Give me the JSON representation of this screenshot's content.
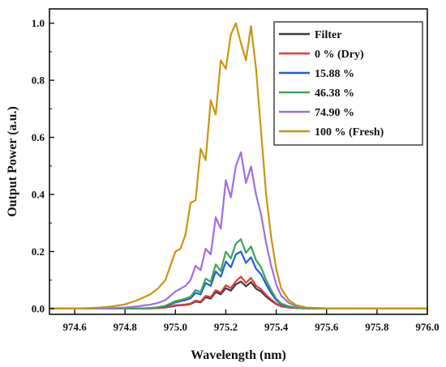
{
  "chart_data": {
    "type": "line",
    "title": "",
    "xlabel": "Wavelength (nm)",
    "ylabel": "Output Power (a.u.)",
    "xlim": [
      974.5,
      976.0
    ],
    "ylim": [
      -0.02,
      1.05
    ],
    "x_ticks": [
      "974.6",
      "974.8",
      "975.0",
      "975.2",
      "975.4",
      "975.6",
      "975.8",
      "976.0"
    ],
    "x_tick_values": [
      974.6,
      974.8,
      975.0,
      975.2,
      975.4,
      975.6,
      975.8,
      976.0
    ],
    "y_ticks": [
      "0.0",
      "0.2",
      "0.4",
      "0.6",
      "0.8",
      "1.0"
    ],
    "y_tick_values": [
      0.0,
      0.2,
      0.4,
      0.6,
      0.8,
      1.0
    ],
    "grid": false,
    "legend_position": "top-right",
    "x": [
      974.5,
      974.6,
      974.7,
      974.75,
      974.8,
      974.85,
      974.9,
      974.93,
      974.96,
      974.98,
      975.0,
      975.02,
      975.04,
      975.06,
      975.08,
      975.1,
      975.12,
      975.14,
      975.16,
      975.18,
      975.2,
      975.22,
      975.24,
      975.26,
      975.28,
      975.3,
      975.32,
      975.34,
      975.36,
      975.38,
      975.4,
      975.42,
      975.45,
      975.48,
      975.52,
      975.6,
      975.7,
      975.8,
      976.0
    ],
    "series": [
      {
        "name": "Filter",
        "color": "#3c3c3c",
        "values": [
          0,
          0,
          0,
          0,
          0,
          0,
          0.001,
          0.002,
          0.004,
          0.007,
          0.01,
          0.012,
          0.013,
          0.016,
          0.025,
          0.022,
          0.04,
          0.035,
          0.058,
          0.05,
          0.072,
          0.063,
          0.085,
          0.095,
          0.078,
          0.093,
          0.07,
          0.06,
          0.042,
          0.028,
          0.016,
          0.008,
          0.004,
          0.002,
          0.001,
          0,
          0,
          0,
          0
        ]
      },
      {
        "name": "0 % (Dry)",
        "color": "#e03c3c",
        "values": [
          0,
          0,
          0,
          0,
          0,
          0,
          0.001,
          0.002,
          0.004,
          0.008,
          0.012,
          0.013,
          0.015,
          0.018,
          0.028,
          0.025,
          0.045,
          0.04,
          0.065,
          0.056,
          0.082,
          0.072,
          0.096,
          0.112,
          0.09,
          0.108,
          0.08,
          0.068,
          0.048,
          0.032,
          0.018,
          0.009,
          0.004,
          0.002,
          0.001,
          0,
          0,
          0,
          0
        ]
      },
      {
        "name": "15.88 %",
        "color": "#1f5fd6",
        "values": [
          0,
          0,
          0,
          0,
          0,
          0,
          0.002,
          0.004,
          0.008,
          0.015,
          0.022,
          0.026,
          0.03,
          0.036,
          0.055,
          0.05,
          0.09,
          0.08,
          0.13,
          0.112,
          0.165,
          0.145,
          0.19,
          0.2,
          0.16,
          0.18,
          0.14,
          0.12,
          0.085,
          0.055,
          0.03,
          0.015,
          0.007,
          0.003,
          0.001,
          0,
          0,
          0,
          0
        ]
      },
      {
        "name": "46.38 %",
        "color": "#3aa45a",
        "values": [
          0,
          0,
          0,
          0,
          0,
          0,
          0.002,
          0.005,
          0.01,
          0.018,
          0.026,
          0.03,
          0.035,
          0.042,
          0.065,
          0.058,
          0.105,
          0.094,
          0.155,
          0.132,
          0.2,
          0.176,
          0.228,
          0.243,
          0.195,
          0.218,
          0.17,
          0.145,
          0.1,
          0.065,
          0.035,
          0.018,
          0.008,
          0.003,
          0.001,
          0,
          0,
          0,
          0
        ]
      },
      {
        "name": "74.90 %",
        "color": "#a06ee0",
        "values": [
          0,
          0,
          0.001,
          0.002,
          0.004,
          0.008,
          0.014,
          0.02,
          0.03,
          0.045,
          0.06,
          0.07,
          0.08,
          0.1,
          0.15,
          0.135,
          0.21,
          0.19,
          0.32,
          0.28,
          0.45,
          0.39,
          0.5,
          0.548,
          0.44,
          0.498,
          0.4,
          0.33,
          0.23,
          0.15,
          0.085,
          0.045,
          0.02,
          0.008,
          0.003,
          0.001,
          0,
          0,
          0
        ]
      },
      {
        "name": "100 % (Fresh)",
        "color": "#c89610",
        "values": [
          0,
          0,
          0.004,
          0.008,
          0.015,
          0.03,
          0.05,
          0.07,
          0.1,
          0.15,
          0.2,
          0.21,
          0.26,
          0.37,
          0.38,
          0.56,
          0.52,
          0.73,
          0.68,
          0.87,
          0.84,
          0.96,
          1.0,
          0.93,
          0.87,
          0.99,
          0.84,
          0.62,
          0.4,
          0.25,
          0.14,
          0.07,
          0.03,
          0.012,
          0.004,
          0.001,
          0,
          0,
          0
        ]
      }
    ]
  }
}
